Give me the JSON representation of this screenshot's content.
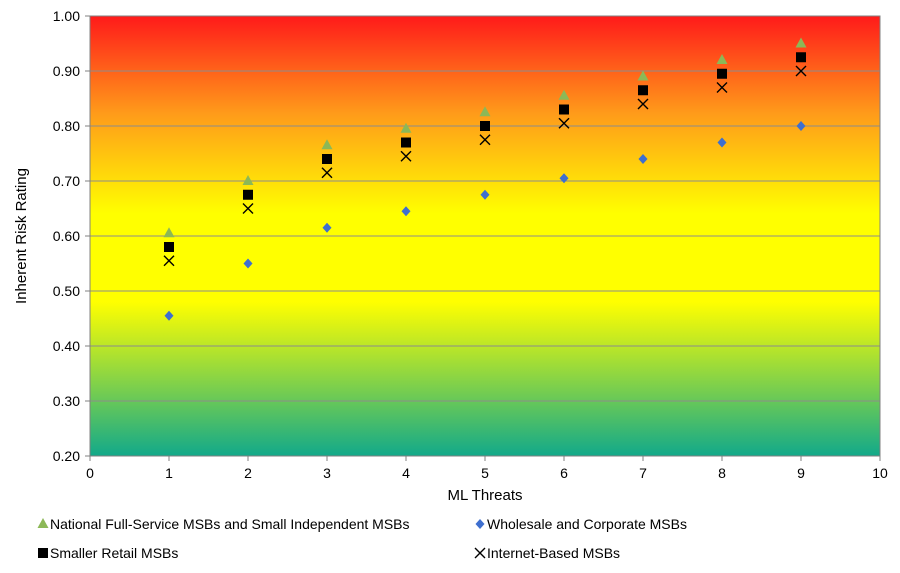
{
  "chart_data": {
    "type": "scatter",
    "xlabel": "ML Threats",
    "ylabel": "Inherent Risk Rating",
    "xlim": [
      0,
      10
    ],
    "ylim": [
      0.2,
      1.0
    ],
    "x_ticks": [
      "0",
      "1",
      "2",
      "3",
      "4",
      "5",
      "6",
      "7",
      "8",
      "9",
      "10"
    ],
    "y_ticks": [
      "0.20",
      "0.30",
      "0.40",
      "0.50",
      "0.60",
      "0.70",
      "0.80",
      "0.90",
      "1.00"
    ],
    "grid": "horizontal",
    "background": "gradient green (low) to yellow to orange to red (high)",
    "background_colors": [
      "#12a98a",
      "#ffff00",
      "#ffff00",
      "#ff9a1a",
      "#ff1a1a"
    ],
    "legend_position": "bottom",
    "series": [
      {
        "name": "National Full-Service MSBs and Small Independent MSBs",
        "marker": "triangle",
        "color": "#8cb857",
        "x": [
          1,
          2,
          3,
          4,
          5,
          6,
          7,
          8,
          9
        ],
        "y": [
          0.605,
          0.7,
          0.765,
          0.795,
          0.825,
          0.855,
          0.89,
          0.92,
          0.95
        ]
      },
      {
        "name": "Wholesale and Corporate MSBs",
        "marker": "diamond",
        "color": "#3e6fcf",
        "x": [
          1,
          2,
          3,
          4,
          5,
          6,
          7,
          8,
          9
        ],
        "y": [
          0.455,
          0.55,
          0.615,
          0.645,
          0.675,
          0.705,
          0.74,
          0.77,
          0.8
        ]
      },
      {
        "name": "Smaller Retail MSBs",
        "marker": "square",
        "color": "#000000",
        "x": [
          1,
          2,
          3,
          4,
          5,
          6,
          7,
          8,
          9
        ],
        "y": [
          0.58,
          0.675,
          0.74,
          0.77,
          0.8,
          0.83,
          0.865,
          0.895,
          0.925
        ]
      },
      {
        "name": "Internet-Based MSBs",
        "marker": "x",
        "color": "#000000",
        "x": [
          1,
          2,
          3,
          4,
          5,
          6,
          7,
          8,
          9
        ],
        "y": [
          0.555,
          0.65,
          0.715,
          0.745,
          0.775,
          0.805,
          0.84,
          0.87,
          0.9
        ]
      }
    ]
  }
}
